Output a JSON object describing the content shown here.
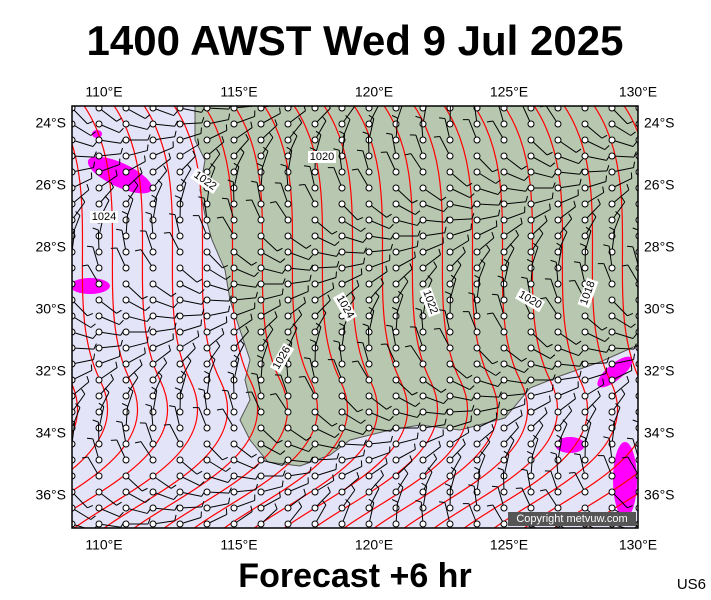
{
  "title": "1400 AWST Wed 9 Jul 2025",
  "longitude_labels": [
    "110°E",
    "115°E",
    "120°E",
    "125°E",
    "130°E"
  ],
  "latitude_labels": [
    "24°S",
    "26°S",
    "28°S",
    "30°S",
    "32°S",
    "34°S",
    "36°S"
  ],
  "isobar_labels": [
    "1020",
    "1022",
    "1024",
    "1024",
    "1022",
    "1020",
    "1018",
    "1026"
  ],
  "copyright": "Copyright metvuw.com",
  "footer": "Forecast +6 hr",
  "code": "US6"
}
